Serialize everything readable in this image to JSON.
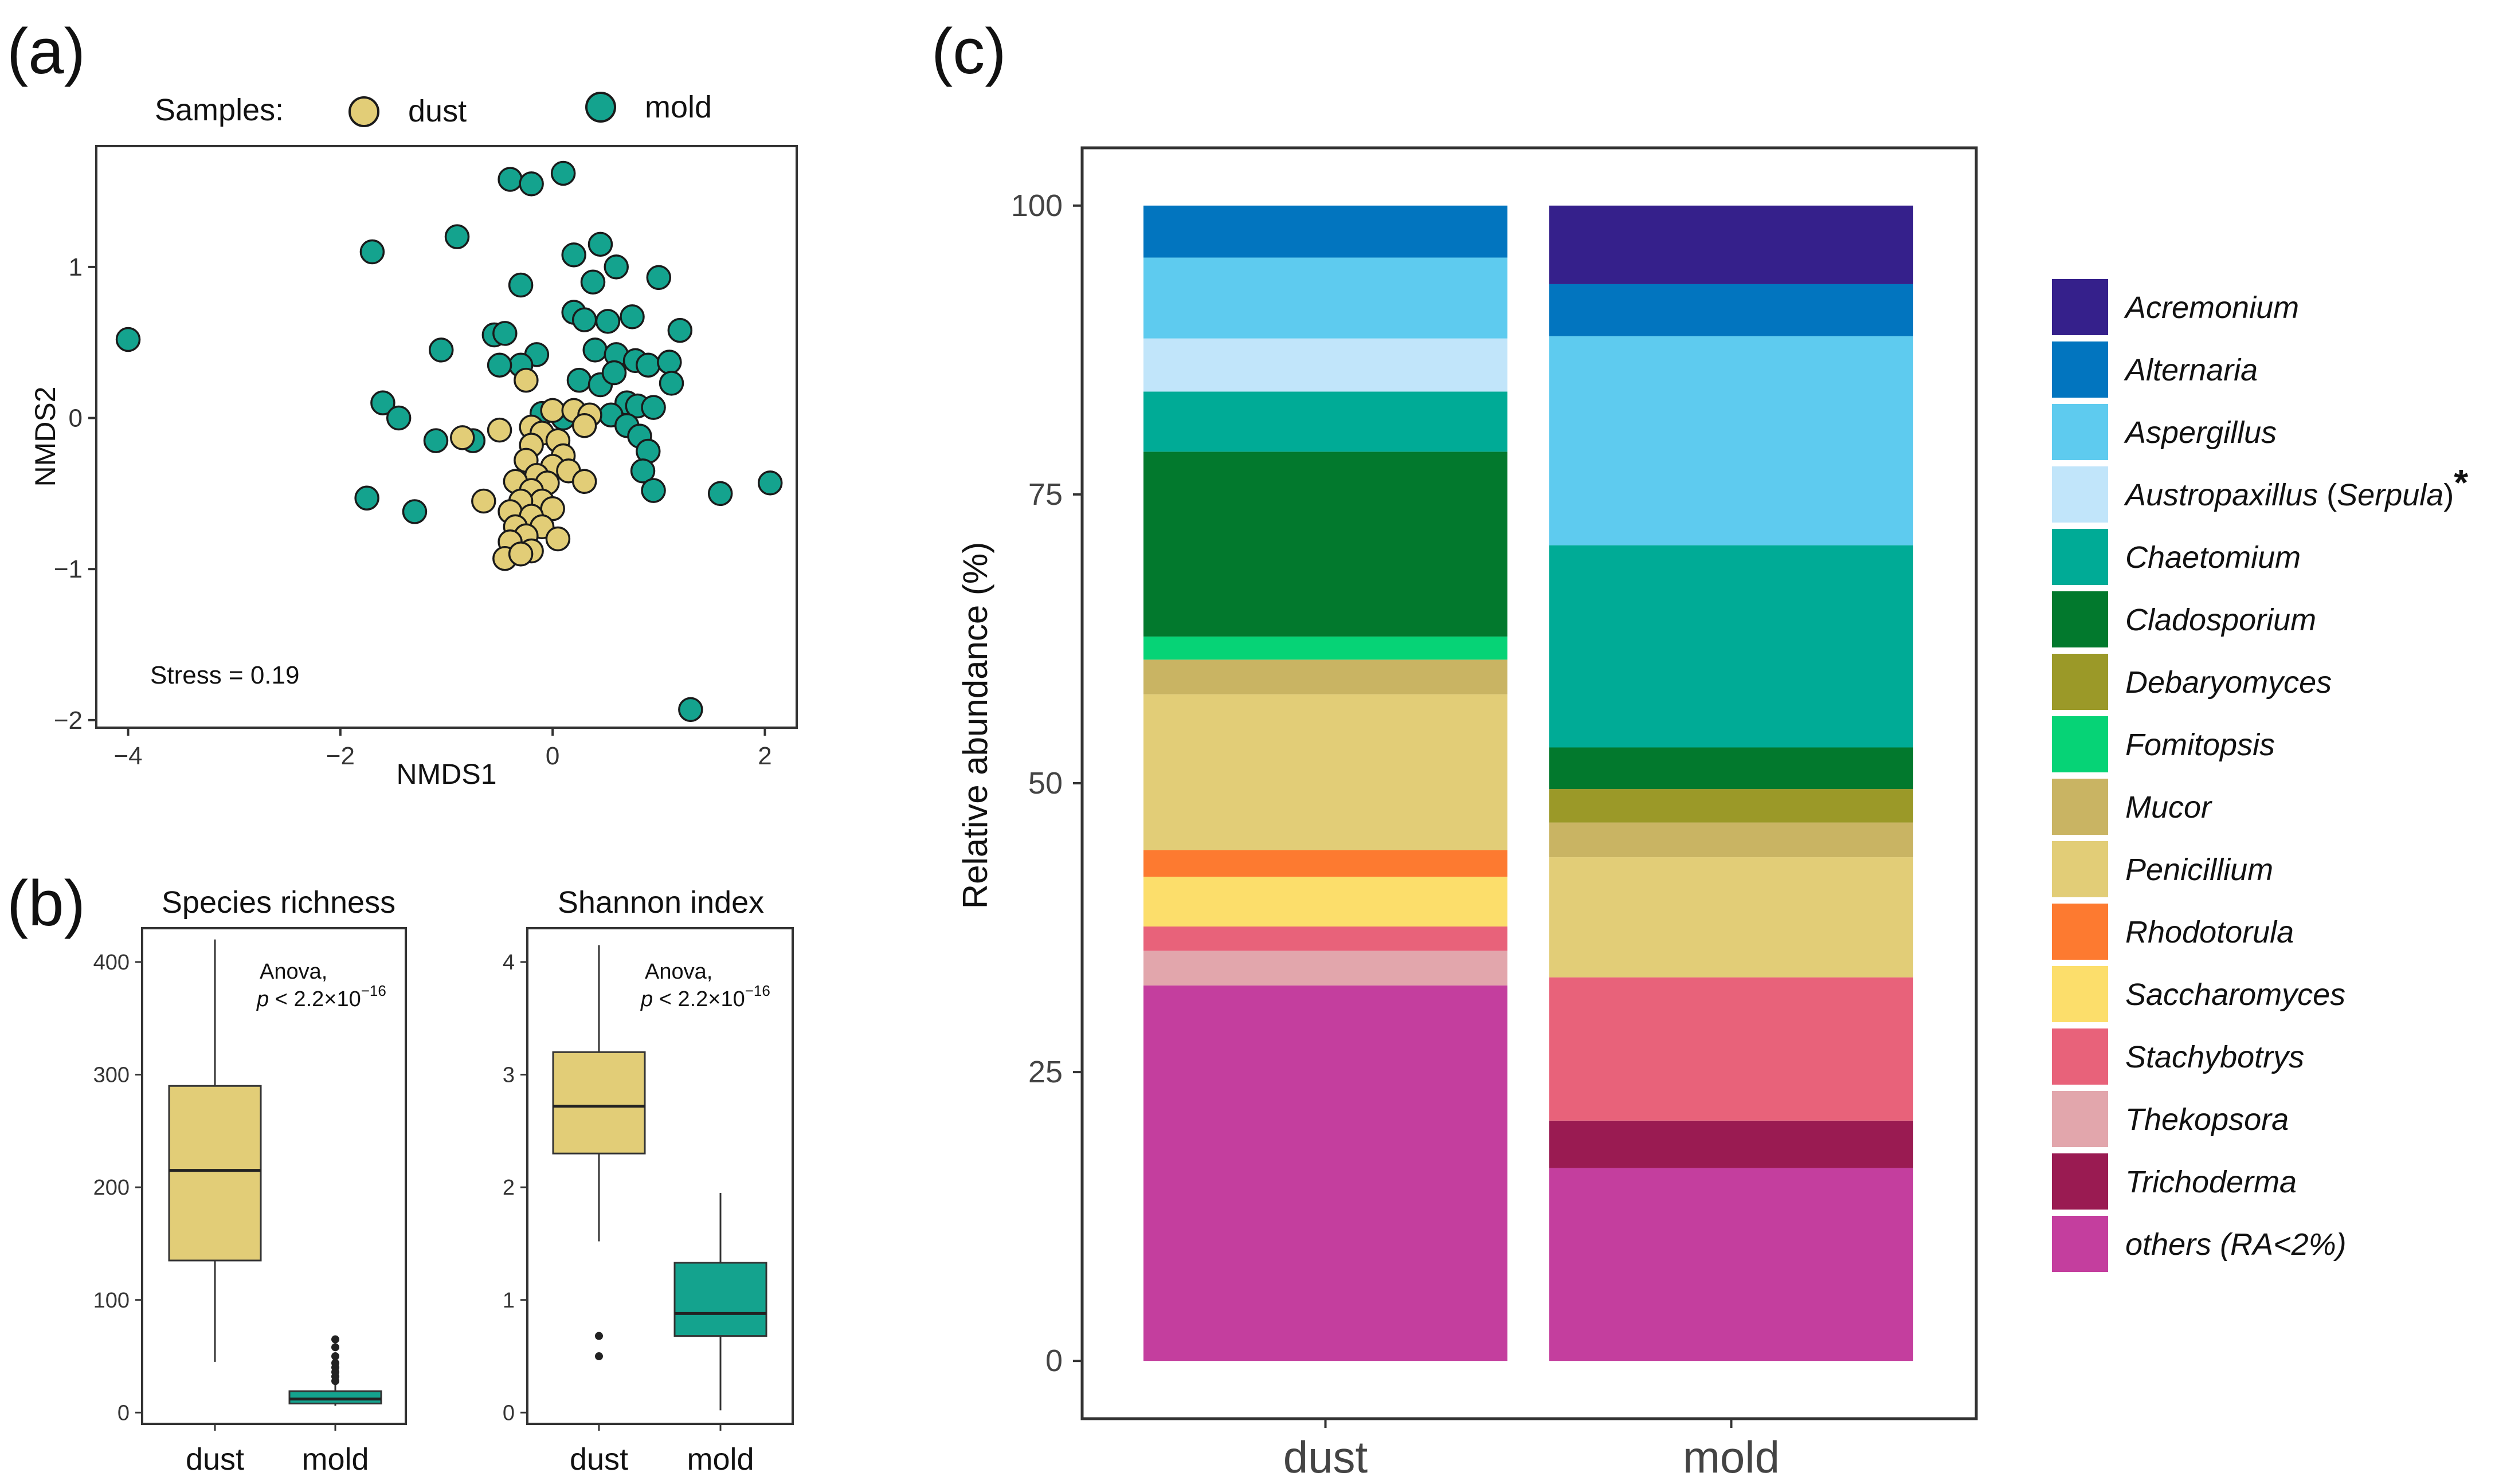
{
  "panel_labels": {
    "a": "(a)",
    "b": "(b)",
    "c": "(c)"
  },
  "colors": {
    "dust": "#E2CD77",
    "mold": "#14A38E",
    "stroke": "#1a1a1a"
  },
  "chart_data": [
    {
      "id": "a",
      "type": "scatter",
      "title": "",
      "xlabel": "NMDS1",
      "ylabel": "NMDS2",
      "xlim": [
        -4.3,
        2.3
      ],
      "ylim": [
        -2.05,
        1.8
      ],
      "xticks": [
        -4,
        -2,
        0,
        2
      ],
      "yticks": [
        -2,
        -1,
        0,
        1
      ],
      "tick_labels_x": [
        "−4",
        "−2",
        "0",
        "2"
      ],
      "tick_labels_y": [
        "−2",
        "−1",
        "0",
        "1"
      ],
      "legend": {
        "title": "Samples:",
        "entries": [
          "dust",
          "mold"
        ],
        "position": "top"
      },
      "annotation": "Stress = 0.19",
      "series": [
        {
          "name": "mold",
          "points": [
            [
              -4.0,
              0.52
            ],
            [
              -1.7,
              1.1
            ],
            [
              -0.9,
              1.2
            ],
            [
              -0.4,
              1.58
            ],
            [
              -0.2,
              1.55
            ],
            [
              0.1,
              1.62
            ],
            [
              0.2,
              1.08
            ],
            [
              0.45,
              1.15
            ],
            [
              0.6,
              1.0
            ],
            [
              0.38,
              0.9
            ],
            [
              1.0,
              0.93
            ],
            [
              -0.3,
              0.88
            ],
            [
              0.2,
              0.7
            ],
            [
              0.3,
              0.65
            ],
            [
              0.52,
              0.64
            ],
            [
              0.75,
              0.67
            ],
            [
              0.4,
              0.45
            ],
            [
              0.6,
              0.42
            ],
            [
              0.78,
              0.38
            ],
            [
              0.9,
              0.35
            ],
            [
              1.1,
              0.37
            ],
            [
              1.2,
              0.58
            ],
            [
              -1.05,
              0.45
            ],
            [
              -0.55,
              0.55
            ],
            [
              -0.45,
              0.56
            ],
            [
              -0.15,
              0.42
            ],
            [
              -0.3,
              0.35
            ],
            [
              -0.5,
              0.35
            ],
            [
              0.25,
              0.25
            ],
            [
              0.45,
              0.22
            ],
            [
              0.58,
              0.3
            ],
            [
              1.12,
              0.23
            ],
            [
              0.7,
              0.1
            ],
            [
              0.8,
              0.08
            ],
            [
              0.95,
              0.07
            ],
            [
              0.55,
              0.02
            ],
            [
              0.7,
              -0.05
            ],
            [
              0.82,
              -0.12
            ],
            [
              0.9,
              -0.22
            ],
            [
              0.85,
              -0.35
            ],
            [
              0.95,
              -0.48
            ],
            [
              -1.6,
              0.1
            ],
            [
              -1.45,
              0.0
            ],
            [
              -1.1,
              -0.15
            ],
            [
              -0.75,
              -0.15
            ],
            [
              -1.75,
              -0.53
            ],
            [
              -1.3,
              -0.62
            ],
            [
              1.58,
              -0.5
            ],
            [
              2.05,
              -0.43
            ],
            [
              1.3,
              -1.93
            ],
            [
              -0.1,
              0.03
            ],
            [
              0.1,
              0.0
            ]
          ]
        },
        {
          "name": "dust",
          "points": [
            [
              -0.85,
              -0.13
            ],
            [
              -0.5,
              -0.08
            ],
            [
              -0.2,
              -0.06
            ],
            [
              0.0,
              0.05
            ],
            [
              0.2,
              0.05
            ],
            [
              0.35,
              0.02
            ],
            [
              0.3,
              -0.05
            ],
            [
              -0.1,
              -0.1
            ],
            [
              0.05,
              -0.15
            ],
            [
              -0.2,
              -0.18
            ],
            [
              0.1,
              -0.25
            ],
            [
              -0.25,
              -0.28
            ],
            [
              0.0,
              -0.32
            ],
            [
              -0.15,
              -0.38
            ],
            [
              -0.05,
              -0.43
            ],
            [
              0.15,
              -0.35
            ],
            [
              0.3,
              -0.42
            ],
            [
              -0.35,
              -0.42
            ],
            [
              -0.2,
              -0.48
            ],
            [
              -0.1,
              -0.55
            ],
            [
              -0.3,
              -0.55
            ],
            [
              0.0,
              -0.6
            ],
            [
              -0.4,
              -0.62
            ],
            [
              -0.2,
              -0.65
            ],
            [
              -0.1,
              -0.72
            ],
            [
              -0.35,
              -0.72
            ],
            [
              -0.25,
              -0.78
            ],
            [
              0.05,
              -0.8
            ],
            [
              -0.4,
              -0.82
            ],
            [
              -0.2,
              -0.88
            ],
            [
              -0.45,
              -0.93
            ],
            [
              -0.3,
              -0.9
            ],
            [
              -0.65,
              -0.55
            ],
            [
              -0.25,
              0.25
            ]
          ]
        }
      ]
    },
    {
      "id": "b1",
      "type": "box",
      "title": "Species richness",
      "categories": [
        "dust",
        "mold"
      ],
      "ylim": [
        -10,
        430
      ],
      "yticks": [
        0,
        100,
        200,
        300,
        400
      ],
      "annotation_line1": "Anova,",
      "annotation_p": "p",
      "annotation_rest": " < 2.2×10",
      "annotation_exp": "−16",
      "boxes": [
        {
          "name": "dust",
          "min": 45,
          "q1": 135,
          "median": 215,
          "q3": 290,
          "max": 420,
          "outliers": []
        },
        {
          "name": "mold",
          "min": 6,
          "q1": 8,
          "median": 12,
          "q3": 19,
          "max": 25,
          "outliers": [
            28,
            32,
            36,
            40,
            44,
            50,
            58,
            65
          ]
        }
      ]
    },
    {
      "id": "b2",
      "type": "box",
      "title": "Shannon index",
      "categories": [
        "dust",
        "mold"
      ],
      "ylim": [
        -0.1,
        4.3
      ],
      "yticks": [
        0,
        1,
        2,
        3,
        4
      ],
      "annotation_line1": "Anova,",
      "annotation_p": "p",
      "annotation_rest": " < 2.2×10",
      "annotation_exp": "−16",
      "boxes": [
        {
          "name": "dust",
          "min": 1.52,
          "q1": 2.3,
          "median": 2.72,
          "q3": 3.2,
          "max": 4.15,
          "outliers": [
            0.68,
            0.5
          ]
        },
        {
          "name": "mold",
          "min": 0.02,
          "q1": 0.68,
          "median": 0.88,
          "q3": 1.33,
          "max": 1.95,
          "outliers": []
        }
      ]
    },
    {
      "id": "c",
      "type": "bar",
      "stacked": true,
      "title": "",
      "xlabel": "",
      "ylabel": "Relative abundance (%)",
      "ylim": [
        -5,
        105
      ],
      "yticks": [
        0,
        25,
        50,
        75,
        100
      ],
      "categories": [
        "dust",
        "mold"
      ],
      "series": [
        {
          "name": "others (RA<2%)",
          "color": "#C43E9E",
          "italic": false,
          "values": [
            32.5,
            16.7
          ]
        },
        {
          "name": "Trichoderma",
          "color": "#9A1B52",
          "italic": true,
          "values": [
            0,
            4.1
          ]
        },
        {
          "name": "Thekopsora",
          "color": "#E2A6AC",
          "italic": true,
          "values": [
            3.0,
            0
          ]
        },
        {
          "name": "Stachybotrys",
          "color": "#E8627A",
          "italic": true,
          "values": [
            2.1,
            12.4
          ]
        },
        {
          "name": "Saccharomyces",
          "color": "#FCDE6B",
          "italic": true,
          "values": [
            4.3,
            0
          ]
        },
        {
          "name": "Rhodotorula",
          "color": "#FD7A30",
          "italic": true,
          "values": [
            2.3,
            0
          ]
        },
        {
          "name": "Penicillium",
          "color": "#E2CD77",
          "italic": true,
          "values": [
            13.5,
            10.4
          ]
        },
        {
          "name": "Mucor",
          "color": "#C9B463",
          "italic": true,
          "values": [
            3.0,
            3.0
          ]
        },
        {
          "name": "Fomitopsis",
          "color": "#06D376",
          "italic": true,
          "values": [
            2.0,
            0
          ]
        },
        {
          "name": "Debaryomyces",
          "color": "#9B9928",
          "italic": true,
          "values": [
            0,
            2.9
          ]
        },
        {
          "name": "Cladosporium",
          "color": "#02792D",
          "italic": true,
          "values": [
            16.0,
            3.6
          ]
        },
        {
          "name": "Chaetomium",
          "color": "#00AB96",
          "italic": true,
          "values": [
            5.2,
            17.5
          ]
        },
        {
          "name": "Austropaxillus (Serpula)*",
          "color": "#C1E5FA",
          "italic": true,
          "values": [
            4.6,
            0
          ]
        },
        {
          "name": "Aspergillus",
          "color": "#5ECBEF",
          "italic": true,
          "values": [
            7.0,
            18.1
          ]
        },
        {
          "name": "Alternaria",
          "color": "#0275BF",
          "italic": true,
          "values": [
            4.5,
            4.5
          ]
        },
        {
          "name": "Acremonium",
          "color": "#35208B",
          "italic": true,
          "values": [
            0,
            6.8
          ]
        }
      ],
      "legend": {
        "position": "right",
        "entries": [
          {
            "label": "Acremonium",
            "color": "#35208B"
          },
          {
            "label": "Alternaria",
            "color": "#0275BF"
          },
          {
            "label": "Aspergillus",
            "color": "#5ECBEF"
          },
          {
            "label": "Austropaxillus (Serpula)",
            "color": "#C1E5FA",
            "suffix": "*"
          },
          {
            "label": "Chaetomium",
            "color": "#00AB96"
          },
          {
            "label": "Cladosporium",
            "color": "#02792D"
          },
          {
            "label": "Debaryomyces",
            "color": "#9B9928"
          },
          {
            "label": "Fomitopsis",
            "color": "#06D376"
          },
          {
            "label": "Mucor",
            "color": "#C9B463"
          },
          {
            "label": "Penicillium",
            "color": "#E2CD77"
          },
          {
            "label": "Rhodotorula",
            "color": "#FD7A30"
          },
          {
            "label": "Saccharomyces",
            "color": "#FCDE6B"
          },
          {
            "label": "Stachybotrys",
            "color": "#E8627A"
          },
          {
            "label": "Thekopsora",
            "color": "#E2A6AC"
          },
          {
            "label": "Trichoderma",
            "color": "#9A1B52"
          },
          {
            "label": "others (RA<2%)",
            "color": "#C43E9E"
          }
        ]
      }
    }
  ]
}
